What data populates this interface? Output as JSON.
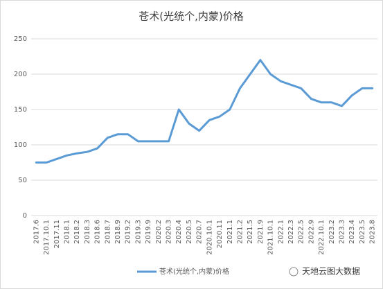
{
  "chart_data": {
    "type": "line",
    "title": "苍术(光统个,内蒙)价格",
    "categories": [
      "2017.6",
      "2017.10.1",
      "2017.11",
      "2018.1",
      "2018.2",
      "2018.3",
      "2018.6",
      "2018.7",
      "2018.9",
      "2019.2",
      "2019.3",
      "2019.9",
      "2020.2",
      "2020.3",
      "2020.4",
      "2020.5",
      "2020.7",
      "2020.10.1",
      "2020.11",
      "2021.1",
      "2021.2",
      "2021.5",
      "2021.9",
      "2021.10.1",
      "2022.1",
      "2022.3",
      "2022.5",
      "2022.9",
      "2022.10.1",
      "2023.2",
      "2023.3",
      "2023.4",
      "2023.5",
      "2023.8"
    ],
    "series": [
      {
        "name": "苍术(光统个,内蒙)价格",
        "color": "#5b9bd5",
        "values": [
          75,
          75,
          80,
          85,
          88,
          90,
          95,
          110,
          115,
          115,
          105,
          105,
          105,
          105,
          150,
          130,
          120,
          135,
          140,
          150,
          180,
          200,
          220,
          200,
          190,
          185,
          180,
          165,
          160,
          160,
          155,
          170,
          180,
          180
        ]
      }
    ],
    "ylim": [
      0,
      250
    ],
    "yticks": [
      0,
      50,
      100,
      150,
      200,
      250
    ],
    "grid": true,
    "legend": "bottom",
    "watermark": "天地云图大数据"
  }
}
